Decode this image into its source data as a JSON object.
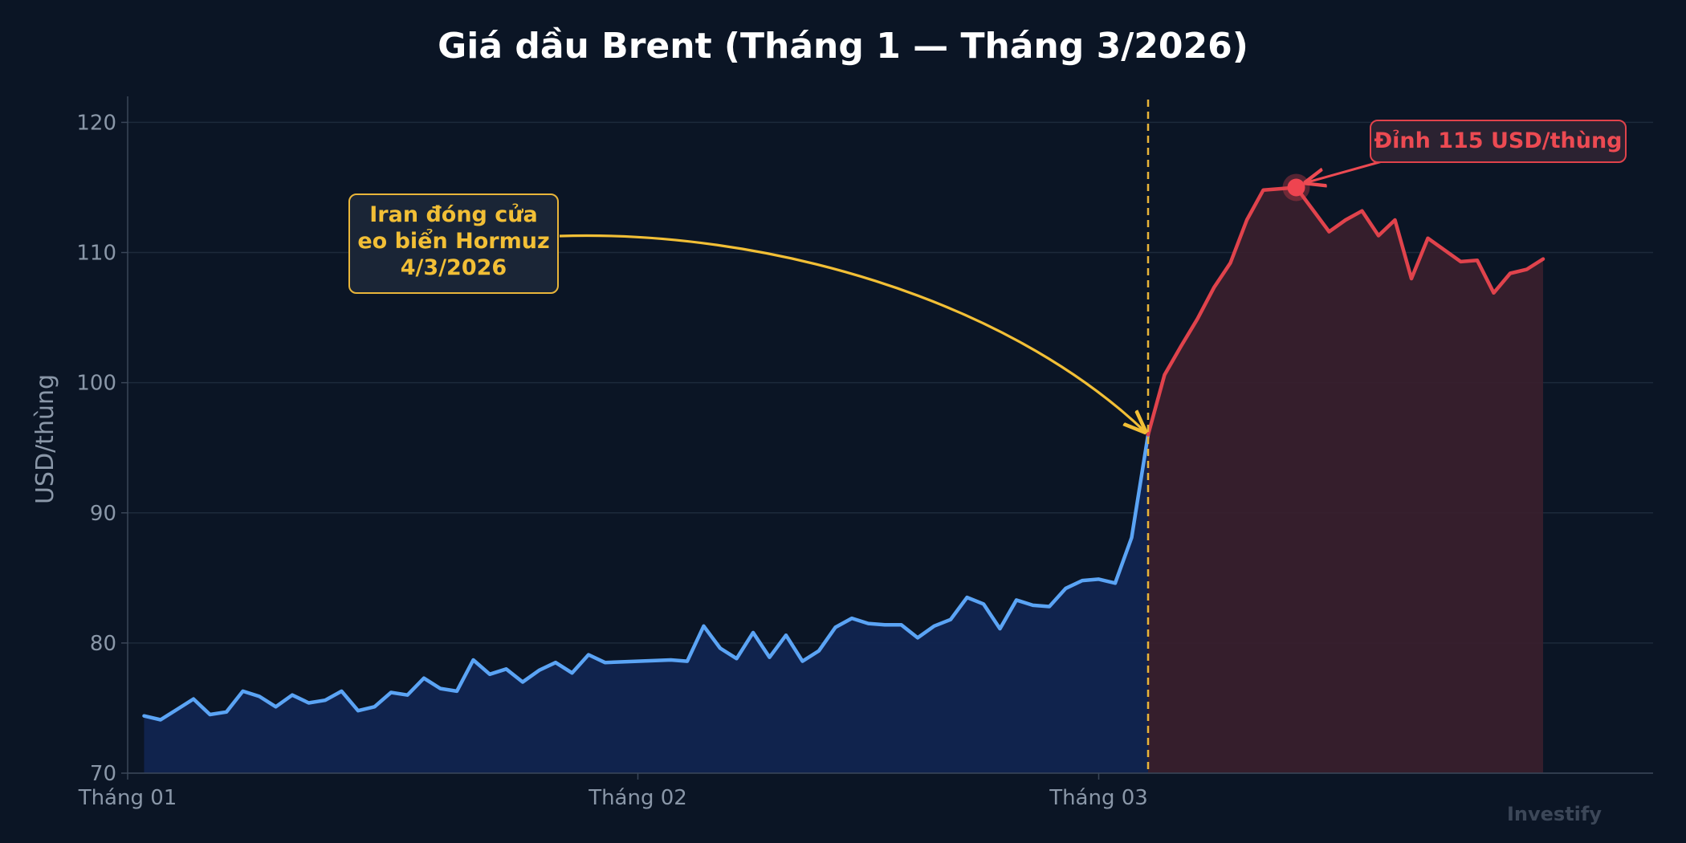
{
  "chart_data": {
    "type": "area",
    "title": "Giá dầu Brent (Tháng 1 — Tháng 3/2026)",
    "ylabel": "USD/thùng",
    "xlabel": "",
    "ylim": [
      70,
      122
    ],
    "yticks": [
      70,
      80,
      90,
      100,
      110,
      120
    ],
    "x_ticks": [
      {
        "label": "Tháng 01",
        "date": "2026-01-01"
      },
      {
        "label": "Tháng 02",
        "date": "2026-02-01"
      },
      {
        "label": "Tháng 03",
        "date": "2026-03-01"
      }
    ],
    "grid": true,
    "series": [
      {
        "color": "#5ba4f5",
        "fill": "#112552",
        "points": [
          [
            "2026-01-02",
            74.4
          ],
          [
            "2026-01-03",
            74.1
          ],
          [
            "2026-01-04",
            74.9
          ],
          [
            "2026-01-05",
            75.7
          ],
          [
            "2026-01-06",
            74.5
          ],
          [
            "2026-01-07",
            74.7
          ],
          [
            "2026-01-08",
            76.3
          ],
          [
            "2026-01-09",
            75.9
          ],
          [
            "2026-01-10",
            75.1
          ],
          [
            "2026-01-11",
            76.0
          ],
          [
            "2026-01-12",
            75.4
          ],
          [
            "2026-01-13",
            75.6
          ],
          [
            "2026-01-14",
            76.3
          ],
          [
            "2026-01-15",
            74.8
          ],
          [
            "2026-01-16",
            75.1
          ],
          [
            "2026-01-17",
            76.2
          ],
          [
            "2026-01-18",
            76.0
          ],
          [
            "2026-01-19",
            77.3
          ],
          [
            "2026-01-20",
            76.5
          ],
          [
            "2026-01-21",
            76.3
          ],
          [
            "2026-01-22",
            78.7
          ],
          [
            "2026-01-23",
            77.6
          ],
          [
            "2026-01-24",
            78.0
          ],
          [
            "2026-01-25",
            77.0
          ],
          [
            "2026-01-26",
            77.9
          ],
          [
            "2026-01-27",
            78.5
          ],
          [
            "2026-01-28",
            77.7
          ],
          [
            "2026-01-29",
            79.1
          ],
          [
            "2026-01-30",
            78.5
          ],
          [
            "2026-02-03",
            78.7
          ],
          [
            "2026-02-04",
            78.6
          ],
          [
            "2026-02-05",
            81.3
          ],
          [
            "2026-02-06",
            79.6
          ],
          [
            "2026-02-07",
            78.8
          ],
          [
            "2026-02-08",
            80.8
          ],
          [
            "2026-02-09",
            78.9
          ],
          [
            "2026-02-10",
            80.6
          ],
          [
            "2026-02-11",
            78.6
          ],
          [
            "2026-02-12",
            79.4
          ],
          [
            "2026-02-13",
            81.2
          ],
          [
            "2026-02-14",
            81.9
          ],
          [
            "2026-02-15",
            81.5
          ],
          [
            "2026-02-16",
            81.4
          ],
          [
            "2026-02-17",
            81.4
          ],
          [
            "2026-02-18",
            80.4
          ],
          [
            "2026-02-19",
            81.3
          ],
          [
            "2026-02-20",
            81.8
          ],
          [
            "2026-02-21",
            83.5
          ],
          [
            "2026-02-22",
            83.0
          ],
          [
            "2026-02-23",
            81.1
          ],
          [
            "2026-02-24",
            83.3
          ],
          [
            "2026-02-25",
            82.9
          ],
          [
            "2026-02-26",
            82.8
          ],
          [
            "2026-02-27",
            84.2
          ],
          [
            "2026-02-28",
            84.8
          ],
          [
            "2026-03-01",
            84.9
          ],
          [
            "2026-03-02",
            84.6
          ],
          [
            "2026-03-03",
            88.1
          ],
          [
            "2026-03-04",
            96.0
          ]
        ]
      },
      {
        "color": "#e0434c",
        "fill": "#3a1f2d",
        "points": [
          [
            "2026-03-04",
            96.0
          ],
          [
            "2026-03-05",
            100.6
          ],
          [
            "2026-03-06",
            102.8
          ],
          [
            "2026-03-07",
            104.9
          ],
          [
            "2026-03-08",
            107.3
          ],
          [
            "2026-03-09",
            109.2
          ],
          [
            "2026-03-10",
            112.5
          ],
          [
            "2026-03-11",
            114.8
          ],
          [
            "2026-03-13",
            115.0
          ],
          [
            "2026-03-14",
            113.3
          ],
          [
            "2026-03-15",
            111.6
          ],
          [
            "2026-03-16",
            112.5
          ],
          [
            "2026-03-17",
            113.2
          ],
          [
            "2026-03-18",
            111.3
          ],
          [
            "2026-03-19",
            112.5
          ],
          [
            "2026-03-20",
            108.0
          ],
          [
            "2026-03-21",
            111.1
          ],
          [
            "2026-03-22",
            110.2
          ],
          [
            "2026-03-23",
            109.3
          ],
          [
            "2026-03-24",
            109.4
          ],
          [
            "2026-03-25",
            106.9
          ],
          [
            "2026-03-26",
            108.4
          ],
          [
            "2026-03-27",
            108.7
          ],
          [
            "2026-03-28",
            109.5
          ]
        ]
      }
    ],
    "event_line": {
      "date": "2026-03-04",
      "color": "#e9b53a"
    },
    "annotations": [
      {
        "lines": [
          "Iran đóng cửa",
          "eo biển Hormuz",
          "4/3/2026"
        ],
        "color": "#f2bf36",
        "target_date": "2026-03-04",
        "target_value": 96.0
      },
      {
        "text": "Đỉnh 115 USD/thùng",
        "color": "#ec4a52",
        "target_date": "2026-03-13",
        "target_value": 115.0
      }
    ],
    "watermark": "Investify"
  }
}
